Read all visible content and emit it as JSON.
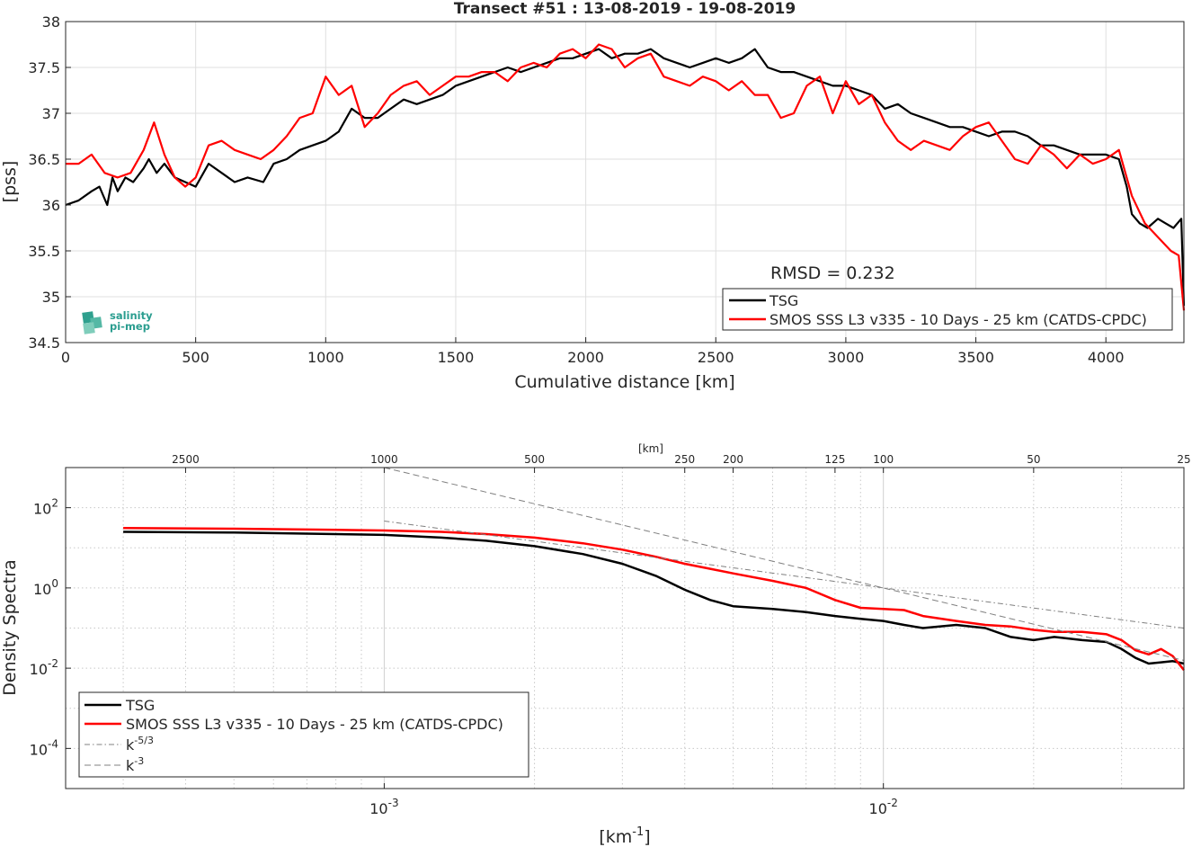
{
  "logo": {
    "line1": "salinity",
    "line2": "pi-mep"
  },
  "chart_data": [
    {
      "type": "line",
      "title": "Transect #51 : 13-08-2019 - 19-08-2019",
      "xlabel": "Cumulative distance [km]",
      "ylabel": "[pss]",
      "xlim": [
        0,
        4300
      ],
      "ylim": [
        34.5,
        38
      ],
      "xticks": [
        0,
        500,
        1000,
        1500,
        2000,
        2500,
        3000,
        3500,
        4000
      ],
      "xtick_labels": [
        "0",
        "500",
        "1000",
        "1500",
        "2000",
        "2500",
        "3000",
        "3500",
        "4000"
      ],
      "yticks": [
        34.5,
        35,
        35.5,
        36,
        36.5,
        37,
        37.5,
        38
      ],
      "ytick_labels": [
        "34.5",
        "35",
        "35.5",
        "36",
        "36.5",
        "37",
        "37.5",
        "38"
      ],
      "grid": true,
      "legend_position": "bottom-right",
      "annotation": "RMSD = 0.232",
      "series": [
        {
          "name": "TSG",
          "color": "#000000",
          "x": [
            0,
            50,
            100,
            130,
            160,
            180,
            200,
            230,
            260,
            300,
            320,
            350,
            380,
            420,
            460,
            500,
            550,
            600,
            650,
            700,
            760,
            800,
            850,
            900,
            950,
            1000,
            1050,
            1100,
            1150,
            1200,
            1250,
            1300,
            1350,
            1400,
            1450,
            1500,
            1550,
            1600,
            1650,
            1700,
            1750,
            1800,
            1850,
            1900,
            1950,
            2000,
            2050,
            2100,
            2150,
            2200,
            2250,
            2300,
            2350,
            2400,
            2450,
            2500,
            2550,
            2600,
            2650,
            2700,
            2750,
            2800,
            2850,
            2900,
            2950,
            3000,
            3050,
            3100,
            3150,
            3200,
            3250,
            3300,
            3350,
            3400,
            3450,
            3500,
            3550,
            3600,
            3650,
            3700,
            3750,
            3800,
            3850,
            3900,
            3950,
            4000,
            4050,
            4080,
            4100,
            4130,
            4160,
            4200,
            4230,
            4260,
            4290,
            4300
          ],
          "y": [
            36.0,
            36.05,
            36.15,
            36.2,
            36.0,
            36.3,
            36.15,
            36.3,
            36.25,
            36.4,
            36.5,
            36.35,
            36.45,
            36.3,
            36.25,
            36.2,
            36.45,
            36.35,
            36.25,
            36.3,
            36.25,
            36.45,
            36.5,
            36.6,
            36.65,
            36.7,
            36.8,
            37.05,
            36.95,
            36.95,
            37.05,
            37.15,
            37.1,
            37.15,
            37.2,
            37.3,
            37.35,
            37.4,
            37.45,
            37.5,
            37.45,
            37.5,
            37.55,
            37.6,
            37.6,
            37.65,
            37.7,
            37.6,
            37.65,
            37.65,
            37.7,
            37.6,
            37.55,
            37.5,
            37.55,
            37.6,
            37.55,
            37.6,
            37.7,
            37.5,
            37.45,
            37.45,
            37.4,
            37.35,
            37.3,
            37.3,
            37.25,
            37.2,
            37.05,
            37.1,
            37.0,
            36.95,
            36.9,
            36.85,
            36.85,
            36.8,
            36.75,
            36.8,
            36.8,
            36.75,
            36.65,
            36.65,
            36.6,
            36.55,
            36.55,
            36.55,
            36.5,
            36.2,
            35.9,
            35.8,
            35.75,
            35.85,
            35.8,
            35.75,
            35.85,
            34.9
          ]
        },
        {
          "name": "SMOS SSS L3 v335 - 10 Days - 25 km (CATDS-CPDC)",
          "color": "#ff0000",
          "x": [
            0,
            50,
            100,
            150,
            200,
            250,
            300,
            340,
            380,
            420,
            460,
            500,
            550,
            600,
            650,
            700,
            750,
            800,
            850,
            900,
            950,
            1000,
            1050,
            1100,
            1150,
            1200,
            1250,
            1300,
            1350,
            1400,
            1450,
            1500,
            1550,
            1600,
            1650,
            1700,
            1750,
            1800,
            1850,
            1900,
            1950,
            2000,
            2050,
            2100,
            2150,
            2200,
            2250,
            2300,
            2350,
            2400,
            2450,
            2500,
            2550,
            2600,
            2650,
            2700,
            2750,
            2800,
            2850,
            2900,
            2950,
            3000,
            3050,
            3100,
            3150,
            3200,
            3250,
            3300,
            3350,
            3400,
            3450,
            3500,
            3550,
            3600,
            3650,
            3700,
            3750,
            3800,
            3850,
            3900,
            3950,
            4000,
            4050,
            4100,
            4150,
            4200,
            4250,
            4280,
            4300
          ],
          "y": [
            36.45,
            36.45,
            36.55,
            36.35,
            36.3,
            36.35,
            36.6,
            36.9,
            36.55,
            36.3,
            36.2,
            36.3,
            36.65,
            36.7,
            36.6,
            36.55,
            36.5,
            36.6,
            36.75,
            36.95,
            37.0,
            37.4,
            37.2,
            37.3,
            36.85,
            37.0,
            37.2,
            37.3,
            37.35,
            37.2,
            37.3,
            37.4,
            37.4,
            37.45,
            37.45,
            37.35,
            37.5,
            37.55,
            37.5,
            37.65,
            37.7,
            37.6,
            37.75,
            37.7,
            37.5,
            37.6,
            37.65,
            37.4,
            37.35,
            37.3,
            37.4,
            37.35,
            37.25,
            37.35,
            37.2,
            37.2,
            36.95,
            37.0,
            37.3,
            37.4,
            37.0,
            37.35,
            37.1,
            37.2,
            36.9,
            36.7,
            36.6,
            36.7,
            36.65,
            36.6,
            36.75,
            36.85,
            36.9,
            36.7,
            36.5,
            36.45,
            36.65,
            36.55,
            36.4,
            36.55,
            36.45,
            36.5,
            36.6,
            36.1,
            35.8,
            35.65,
            35.5,
            35.45,
            34.85
          ]
        }
      ]
    },
    {
      "type": "line",
      "xlabel": "[km⁻¹]",
      "ylabel": "Density Spectra",
      "top_axis_label": "[km]",
      "x_scale": "log",
      "y_scale": "log",
      "xlim": [
        0.00023,
        0.04
      ],
      "ylim": [
        1e-05,
        1000
      ],
      "xticks_major": [
        0.001,
        0.01
      ],
      "xtick_major_labels": [
        "10",
        "10"
      ],
      "xtick_major_exponents": [
        "-3",
        "-2"
      ],
      "yticks": [
        0.0001,
        0.01,
        1,
        100
      ],
      "ytick_labels": [
        "10",
        "10",
        "10",
        "10"
      ],
      "ytick_exponents": [
        "-4",
        "-2",
        "0",
        "2"
      ],
      "top_ticks_km": [
        2500,
        1000,
        500,
        250,
        200,
        125,
        100,
        50,
        25
      ],
      "top_tick_labels": [
        "2500",
        "1000",
        "500",
        "250",
        "200",
        "125",
        "100",
        "50",
        "25"
      ],
      "grid": true,
      "legend_position": "bottom-left",
      "series": [
        {
          "name": "TSG",
          "color": "#000000",
          "x": [
            0.0003,
            0.0005,
            0.0008,
            0.001,
            0.0013,
            0.0016,
            0.002,
            0.0025,
            0.003,
            0.0035,
            0.004,
            0.0045,
            0.005,
            0.006,
            0.007,
            0.008,
            0.009,
            0.01,
            0.011,
            0.012,
            0.014,
            0.016,
            0.018,
            0.02,
            0.022,
            0.025,
            0.028,
            0.03,
            0.032,
            0.034,
            0.036,
            0.038,
            0.04
          ],
          "y": [
            25,
            24,
            22,
            21,
            18,
            15,
            11,
            7,
            4,
            2,
            0.9,
            0.5,
            0.35,
            0.3,
            0.25,
            0.2,
            0.17,
            0.15,
            0.12,
            0.1,
            0.12,
            0.1,
            0.06,
            0.05,
            0.06,
            0.05,
            0.045,
            0.03,
            0.018,
            0.013,
            0.014,
            0.015,
            0.013
          ]
        },
        {
          "name": "SMOS SSS L3 v335 - 10 Days - 25 km (CATDS-CPDC)",
          "color": "#ff0000",
          "x": [
            0.0003,
            0.0005,
            0.0008,
            0.001,
            0.0013,
            0.0016,
            0.002,
            0.0025,
            0.003,
            0.0035,
            0.004,
            0.0045,
            0.005,
            0.006,
            0.007,
            0.008,
            0.009,
            0.01,
            0.011,
            0.012,
            0.014,
            0.016,
            0.018,
            0.02,
            0.022,
            0.025,
            0.028,
            0.03,
            0.032,
            0.034,
            0.036,
            0.038,
            0.04
          ],
          "y": [
            31,
            30,
            28,
            27,
            25,
            22,
            18,
            13,
            9,
            6,
            4,
            3,
            2.3,
            1.5,
            1,
            0.5,
            0.32,
            0.3,
            0.28,
            0.2,
            0.15,
            0.12,
            0.11,
            0.09,
            0.08,
            0.08,
            0.07,
            0.05,
            0.028,
            0.022,
            0.03,
            0.02,
            0.009
          ]
        },
        {
          "name": "k⁻⁵ᐟ³",
          "color": "#808080",
          "dash": "dash-dot",
          "x": [
            0.001,
            0.04
          ],
          "y": [
            46.4,
            0.0993
          ]
        },
        {
          "name": "k⁻³",
          "color": "#808080",
          "dash": "dashed",
          "x": [
            0.001,
            0.04
          ],
          "y": [
            1000,
            0.0156
          ]
        }
      ],
      "legend_entries": [
        {
          "base": "TSG",
          "sup": ""
        },
        {
          "base": "SMOS SSS L3 v335 - 10 Days - 25 km (CATDS-CPDC)",
          "sup": ""
        },
        {
          "base": "k",
          "sup": "-5/3"
        },
        {
          "base": "k",
          "sup": "-3"
        }
      ]
    }
  ]
}
